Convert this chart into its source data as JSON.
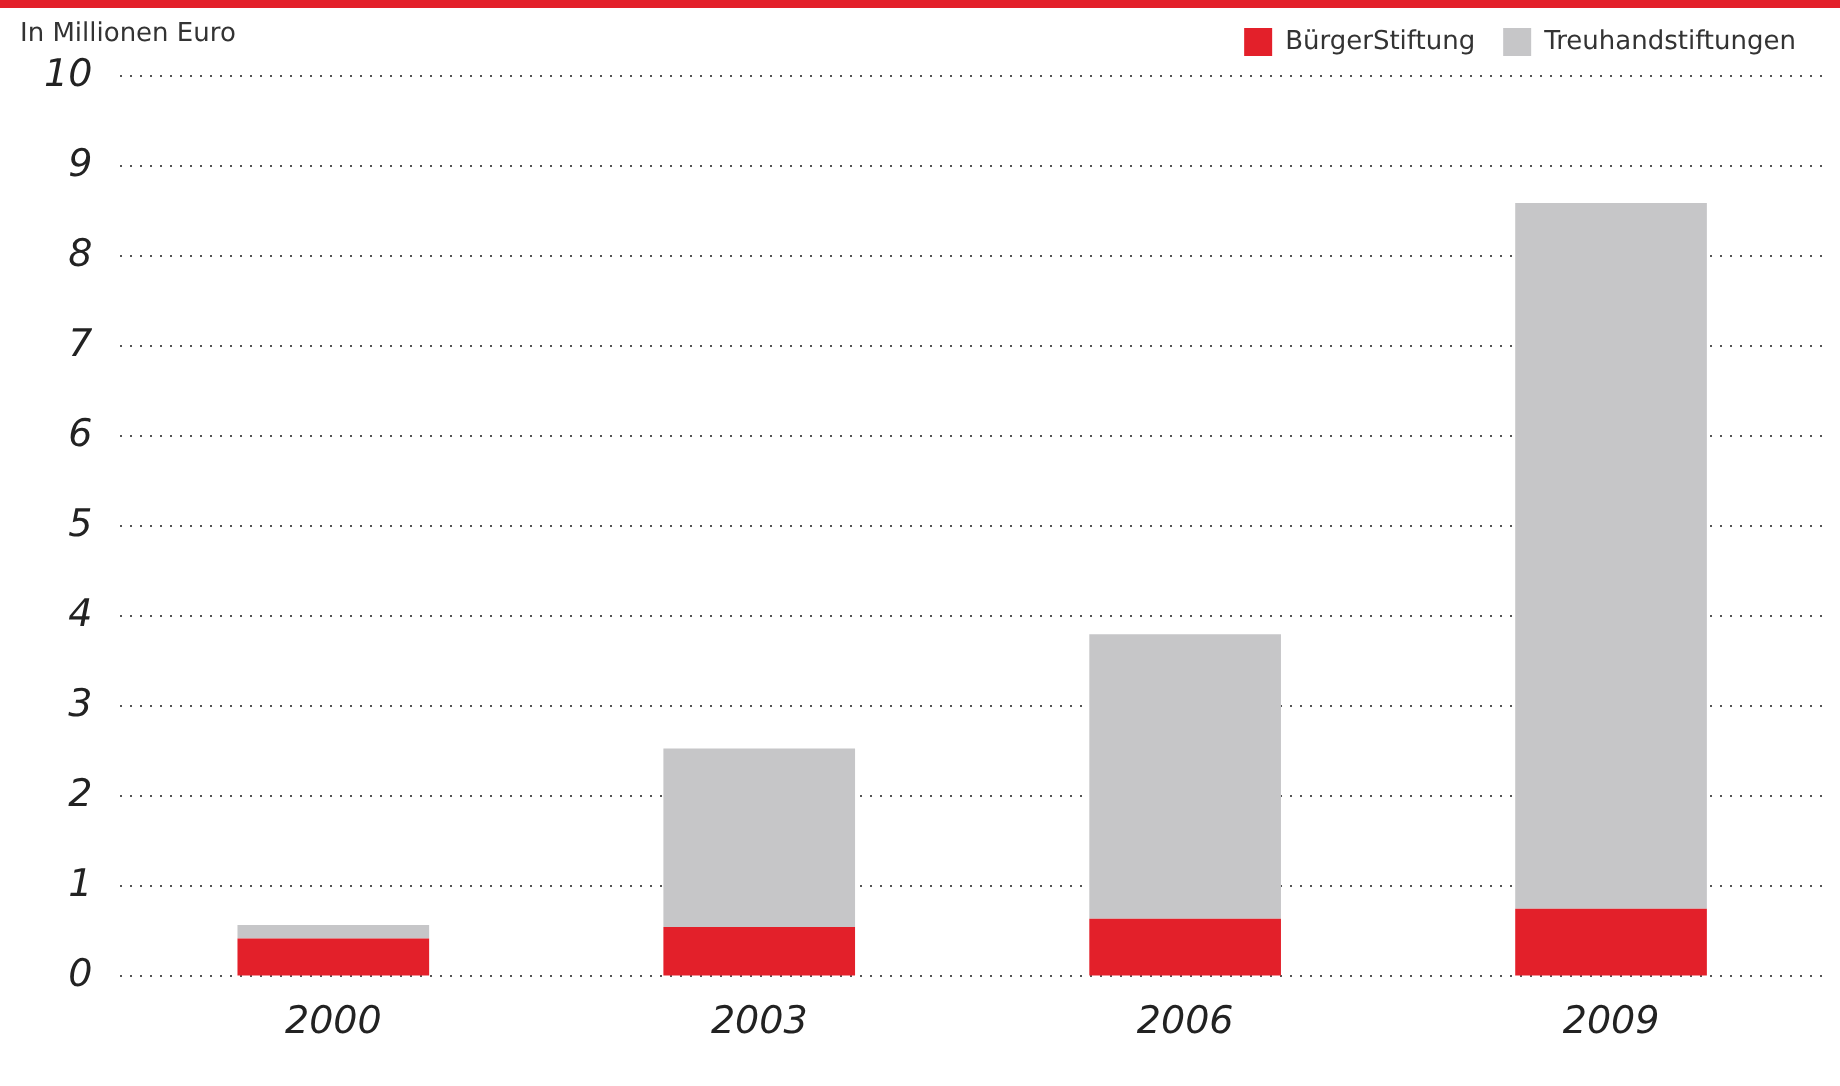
{
  "chart_data": {
    "type": "bar",
    "stacked": true,
    "ylabel": "In Millionen Euro",
    "categories": [
      "2000",
      "2003",
      "2006",
      "2009"
    ],
    "series": [
      {
        "name": "BürgerStiftung",
        "color": "#e3202a",
        "values": [
          0.42,
          0.55,
          0.64,
          0.75
        ]
      },
      {
        "name": "Treuhandstiftungen",
        "color": "#c6c6c8",
        "values": [
          0.15,
          1.98,
          3.16,
          7.84
        ]
      }
    ],
    "ylim": [
      0,
      10
    ],
    "yticks": [
      0,
      1,
      2,
      3,
      4,
      5,
      6,
      7,
      8,
      9,
      10
    ],
    "grid": "y",
    "legend": "top right"
  }
}
